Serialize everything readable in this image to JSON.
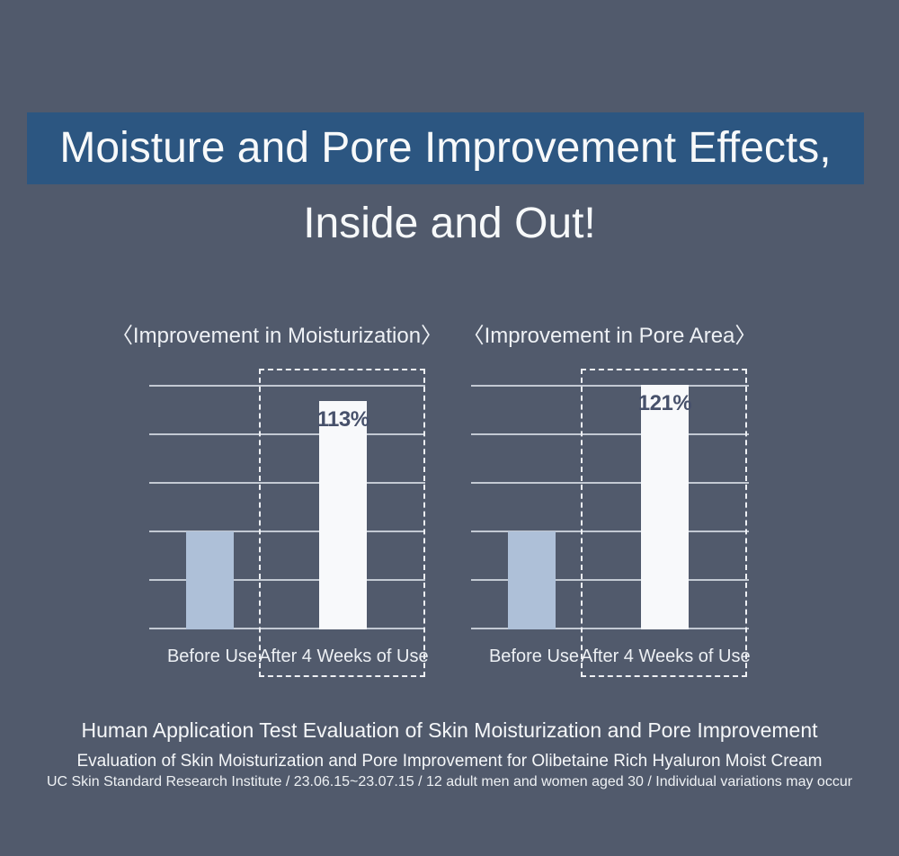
{
  "page": {
    "background_color": "#515a6c",
    "banner_color": "#2c5681"
  },
  "header": {
    "title_line1": "Moisture and Pore Improvement Effects,",
    "title_line2": "Inside and Out!"
  },
  "chart_data": [
    {
      "type": "bar",
      "title": "〈Improvement in Moisturization〉",
      "categories": [
        "Before Use",
        "After 4 Weeks of Use"
      ],
      "values": [
        null,
        113
      ],
      "data_labels": [
        "",
        "113%"
      ],
      "ylim": [
        0,
        121
      ],
      "grid": true,
      "grid_lines": 6,
      "legend": "none",
      "bar_height_frac": [
        0.4,
        0.933
      ],
      "bar_colors": [
        "#aec0d8",
        "#f8f9fb"
      ],
      "label_color": "#47516b",
      "highlighted_category": "After 4 Weeks of Use"
    },
    {
      "type": "bar",
      "title": "〈Improvement in Pore Area〉",
      "categories": [
        "Before Use",
        "After 4 Weeks of Use"
      ],
      "values": [
        null,
        121
      ],
      "data_labels": [
        "",
        "121%"
      ],
      "ylim": [
        0,
        121
      ],
      "grid": true,
      "grid_lines": 6,
      "legend": "none",
      "bar_height_frac": [
        0.4,
        1.0
      ],
      "bar_colors": [
        "#aec0d8",
        "#f8f9fb"
      ],
      "label_color": "#47516b",
      "highlighted_category": "After 4 Weeks of Use"
    }
  ],
  "footer": {
    "line1": "Human Application Test Evaluation of Skin Moisturization and Pore Improvement",
    "line2": "Evaluation of Skin Moisturization and Pore Improvement for Olibetaine Rich Hyaluron Moist Cream",
    "line3": "UC Skin Standard Research Institute / 23.06.15~23.07.15 / 12 adult men and women aged 30 / Individual variations may occur"
  }
}
